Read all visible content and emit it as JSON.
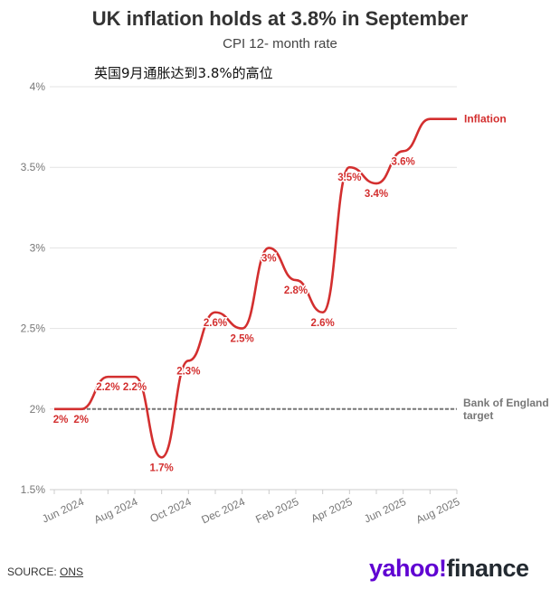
{
  "chart_data": {
    "type": "line",
    "title": "UK inflation holds at 3.8% in September",
    "subtitle": "CPI 12- month rate",
    "note": "英国9月通胀达到3.8%的高位",
    "categories": [
      "May 2024",
      "Jun 2024",
      "Jul 2024",
      "Aug 2024",
      "Sep 2024",
      "Oct 2024",
      "Nov 2024",
      "Dec 2024",
      "Jan 2025",
      "Feb 2025",
      "Mar 2025",
      "Apr 2025",
      "May 2025",
      "Jun 2025",
      "Jul 2025",
      "Aug 2025"
    ],
    "x_tick_labels": [
      "",
      "Jun 2024",
      "",
      "Aug 2024",
      "",
      "Oct 2024",
      "",
      "Dec 2024",
      "",
      "Feb 2025",
      "",
      "Apr 2025",
      "",
      "Jun 2025",
      "",
      "Aug 2025"
    ],
    "series": [
      {
        "name": "Inflation",
        "color": "#d32f2f",
        "values": [
          2.0,
          2.0,
          2.2,
          2.2,
          1.7,
          2.3,
          2.6,
          2.5,
          3.0,
          2.8,
          2.6,
          3.5,
          3.4,
          3.6,
          3.8,
          3.8
        ],
        "labels": [
          "2%",
          "2%",
          "2.2%",
          "2.2%",
          "1.7%",
          "2.3%",
          "2.6%",
          "2.5%",
          "3%",
          "2.8%",
          "2.6%",
          "3.5%",
          "3.4%",
          "3.6%",
          null,
          null
        ]
      }
    ],
    "reference_line": {
      "name": "Bank of England target",
      "value": 2.0,
      "color": "#777777"
    },
    "y_ticks": [
      1.5,
      2,
      2.5,
      3,
      3.5,
      4
    ],
    "y_tick_labels": [
      "1.5%",
      "2%",
      "2.5%",
      "3%",
      "3.5%",
      "4%"
    ],
    "ylim": [
      1.5,
      4
    ],
    "grid": true
  },
  "footer": {
    "source_label": "SOURCE:",
    "source_name": "ONS",
    "logo_yahoo": "yahoo!",
    "logo_finance": "finance"
  }
}
